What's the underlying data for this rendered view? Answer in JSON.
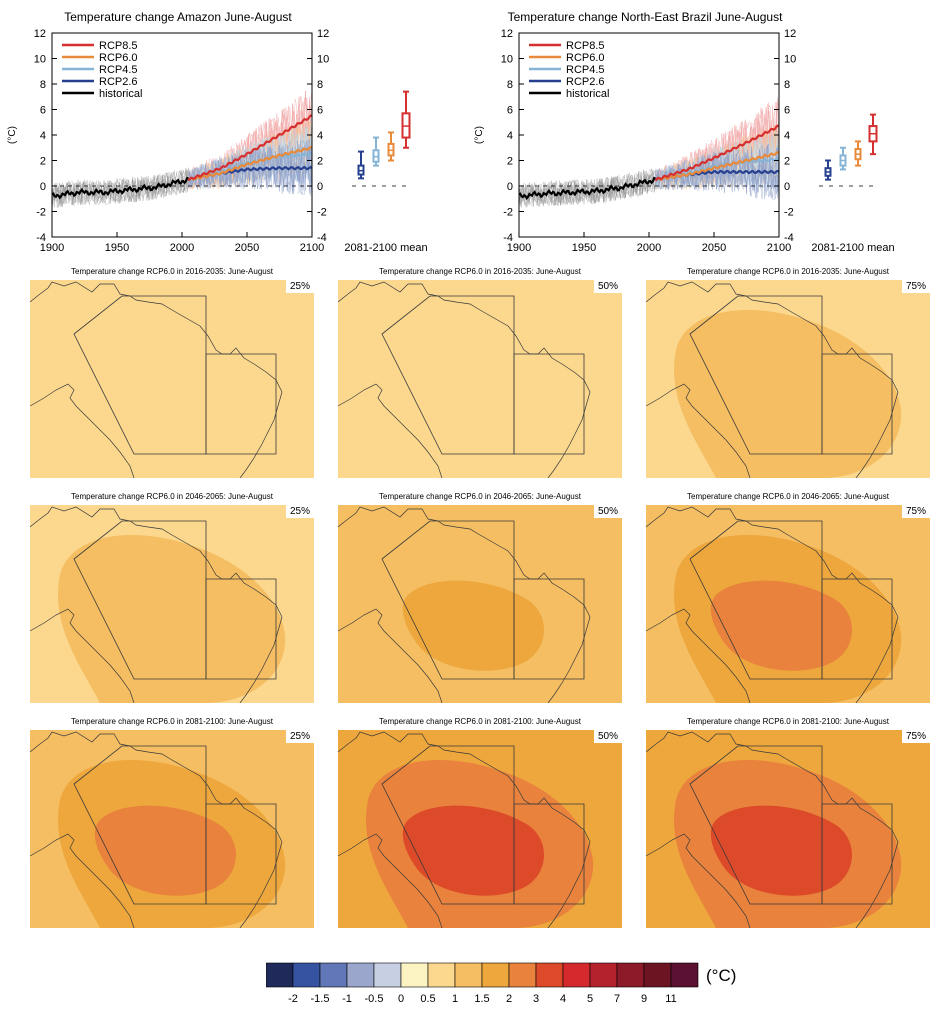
{
  "colors": {
    "rcp85": "#d62f2f",
    "rcp60": "#e98a3a",
    "rcp45": "#86b4d6",
    "rcp26": "#263f8f",
    "historical": "#000000"
  },
  "chart_data": [
    {
      "type": "line",
      "title": "Temperature change Amazon June-August",
      "ylabel": "(°C)",
      "xlim": [
        1900,
        2100
      ],
      "ylim": [
        -4,
        12
      ],
      "xticks": [
        1900,
        1950,
        2000,
        2050,
        2100
      ],
      "yticks": [
        -4,
        -2,
        0,
        2,
        4,
        6,
        8,
        10,
        12
      ],
      "legend_position": "top-left",
      "legend": [
        "RCP8.5",
        "RCP6.0",
        "RCP4.5",
        "RCP2.6",
        "historical"
      ],
      "series": [
        {
          "name": "historical",
          "x": [
            1900,
            1920,
            1940,
            1960,
            1980,
            2005
          ],
          "y": [
            -0.8,
            -0.5,
            -0.5,
            -0.3,
            -0.1,
            0.5
          ]
        },
        {
          "name": "RCP2.6",
          "x": [
            2005,
            2030,
            2050,
            2075,
            2100
          ],
          "y": [
            0.5,
            1.0,
            1.3,
            1.4,
            1.4
          ]
        },
        {
          "name": "RCP4.5",
          "x": [
            2005,
            2030,
            2050,
            2075,
            2100
          ],
          "y": [
            0.5,
            1.1,
            1.8,
            2.3,
            2.5
          ]
        },
        {
          "name": "RCP6.0",
          "x": [
            2005,
            2030,
            2050,
            2075,
            2100
          ],
          "y": [
            0.5,
            1.0,
            1.7,
            2.4,
            3.0
          ]
        },
        {
          "name": "RCP8.5",
          "x": [
            2005,
            2030,
            2050,
            2075,
            2100
          ],
          "y": [
            0.5,
            1.4,
            2.5,
            4.0,
            5.5
          ]
        }
      ],
      "boxplot_label": "2081-2100 mean",
      "boxplots": [
        {
          "name": "RCP2.6",
          "min": 0.6,
          "q1": 0.9,
          "median": 1.2,
          "q3": 1.6,
          "max": 2.7
        },
        {
          "name": "RCP4.5",
          "min": 1.6,
          "q1": 1.9,
          "median": 2.3,
          "q3": 2.8,
          "max": 3.8
        },
        {
          "name": "RCP6.0",
          "min": 2.0,
          "q1": 2.4,
          "median": 2.8,
          "q3": 3.3,
          "max": 4.2
        },
        {
          "name": "RCP8.5",
          "min": 3.0,
          "q1": 3.8,
          "median": 4.7,
          "q3": 5.7,
          "max": 7.4
        }
      ]
    },
    {
      "type": "line",
      "title": "Temperature change North-East Brazil June-August",
      "ylabel": "(°C)",
      "xlim": [
        1900,
        2100
      ],
      "ylim": [
        -4,
        12
      ],
      "xticks": [
        1900,
        1950,
        2000,
        2050,
        2100
      ],
      "yticks": [
        -4,
        -2,
        0,
        2,
        4,
        6,
        8,
        10,
        12
      ],
      "legend_position": "top-left",
      "legend": [
        "RCP8.5",
        "RCP6.0",
        "RCP4.5",
        "RCP2.6",
        "historical"
      ],
      "series": [
        {
          "name": "historical",
          "x": [
            1900,
            1920,
            1940,
            1960,
            1980,
            2005
          ],
          "y": [
            -0.8,
            -0.6,
            -0.5,
            -0.4,
            -0.1,
            0.5
          ]
        },
        {
          "name": "RCP2.6",
          "x": [
            2005,
            2030,
            2050,
            2075,
            2100
          ],
          "y": [
            0.5,
            0.9,
            1.1,
            1.1,
            1.1
          ]
        },
        {
          "name": "RCP4.5",
          "x": [
            2005,
            2030,
            2050,
            2075,
            2100
          ],
          "y": [
            0.5,
            1.0,
            1.5,
            1.9,
            2.1
          ]
        },
        {
          "name": "RCP6.0",
          "x": [
            2005,
            2030,
            2050,
            2075,
            2100
          ],
          "y": [
            0.5,
            0.9,
            1.4,
            2.0,
            2.6
          ]
        },
        {
          "name": "RCP8.5",
          "x": [
            2005,
            2030,
            2050,
            2075,
            2100
          ],
          "y": [
            0.5,
            1.3,
            2.2,
            3.4,
            4.7
          ]
        }
      ],
      "boxplot_label": "2081-2100 mean",
      "boxplots": [
        {
          "name": "RCP2.6",
          "min": 0.5,
          "q1": 0.8,
          "median": 1.1,
          "q3": 1.4,
          "max": 2.0
        },
        {
          "name": "RCP4.5",
          "min": 1.3,
          "q1": 1.6,
          "median": 2.0,
          "q3": 2.4,
          "max": 3.0
        },
        {
          "name": "RCP6.0",
          "min": 1.6,
          "q1": 2.1,
          "median": 2.5,
          "q3": 2.9,
          "max": 3.5
        },
        {
          "name": "RCP8.5",
          "min": 2.5,
          "q1": 3.5,
          "median": 4.1,
          "q3": 4.7,
          "max": 5.6
        }
      ]
    },
    {
      "type": "heatmap",
      "maps": [
        {
          "title": "Temperature change RCP6.0 in 2016-2035: June-August",
          "percentile": "25%",
          "base": 0.6,
          "inner": 0.8,
          "core": 0.8
        },
        {
          "title": "Temperature change RCP6.0 in 2016-2035: June-August",
          "percentile": "50%",
          "base": 0.8,
          "inner": 0.8,
          "core": 0.8
        },
        {
          "title": "Temperature change RCP6.0 in 2016-2035: June-August",
          "percentile": "75%",
          "base": 0.8,
          "inner": 1.2,
          "core": 1.2
        },
        {
          "title": "Temperature change RCP6.0 in 2046-2065: June-August",
          "percentile": "25%",
          "base": 0.8,
          "inner": 1.2,
          "core": 1.2
        },
        {
          "title": "Temperature change RCP6.0 in 2046-2065: June-August",
          "percentile": "50%",
          "base": 1.2,
          "inner": 1.2,
          "core": 1.7
        },
        {
          "title": "Temperature change RCP6.0 in 2046-2065: June-August",
          "percentile": "75%",
          "base": 1.2,
          "inner": 1.7,
          "core": 2.5
        },
        {
          "title": "Temperature change RCP6.0 in 2081-2100: June-August",
          "percentile": "25%",
          "base": 1.2,
          "inner": 1.7,
          "core": 2.5
        },
        {
          "title": "Temperature change RCP6.0 in 2081-2100: June-August",
          "percentile": "50%",
          "base": 1.7,
          "inner": 2.5,
          "core": 3.5
        },
        {
          "title": "Temperature change RCP6.0 in 2081-2100: June-August",
          "percentile": "75%",
          "base": 1.7,
          "inner": 2.5,
          "core": 3.5
        }
      ],
      "colorbar": {
        "unit": "(°C)",
        "colors": [
          "#1f2a5a",
          "#3553a0",
          "#6277b7",
          "#9aa6cc",
          "#c7cfe2",
          "#fcf3c2",
          "#fbd88e",
          "#f5be62",
          "#eea73c",
          "#e8823c",
          "#dd4a2a",
          "#d42a2d",
          "#b4222d",
          "#8d1a28",
          "#6c1422",
          "#5a1030"
        ],
        "labels": [
          "-2",
          "-1.5",
          "-1",
          "-0.5",
          "0",
          "0.5",
          "1",
          "1.5",
          "2",
          "3",
          "4",
          "5",
          "7",
          "9",
          "11"
        ]
      }
    }
  ]
}
